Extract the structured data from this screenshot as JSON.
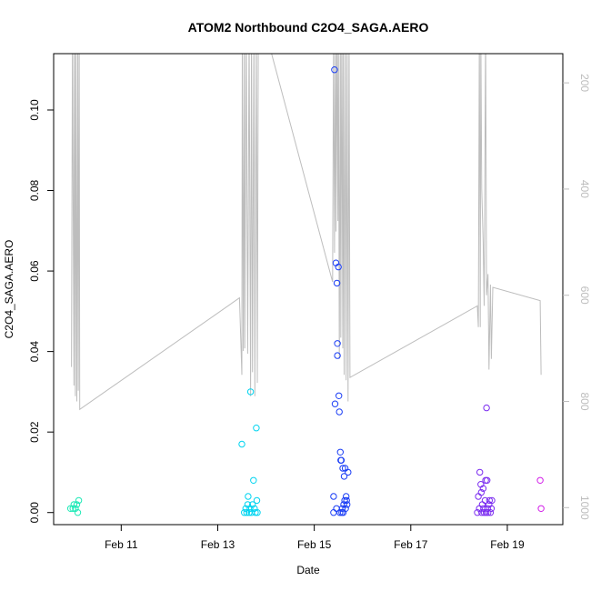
{
  "chart_data": {
    "type": "scatter",
    "title": "ATOM2 Northbound C2O4_SAGA.AERO",
    "xlabel": "Date",
    "ylabel": "C2O4_SAGA.AERO",
    "x_ticks": [
      "Feb 11",
      "Feb 13",
      "Feb 15",
      "Feb 17",
      "Feb 19"
    ],
    "x_tick_days": [
      11,
      13,
      15,
      17,
      19
    ],
    "xlim_days": [
      9.6,
      20.15
    ],
    "y_ticks": [
      "0.00",
      "0.02",
      "0.04",
      "0.06",
      "0.08",
      "0.10"
    ],
    "y_tick_values": [
      0,
      0.02,
      0.04,
      0.06,
      0.08,
      0.1
    ],
    "ylim": [
      -0.003,
      0.114
    ],
    "y2_ticks": [
      "200",
      "400",
      "600",
      "800",
      "1000"
    ],
    "y2_tick_values": [
      200,
      400,
      600,
      800,
      1000
    ],
    "y2lim": [
      1032,
      145
    ],
    "y2_color": "#bdbdbd",
    "grid": false,
    "legend": "none",
    "points": [
      {
        "x": 9.95,
        "y": 0.001,
        "color": "#1de9b6"
      },
      {
        "x": 10.0,
        "y": 0.001,
        "color": "#1de9b6"
      },
      {
        "x": 10.02,
        "y": 0.002,
        "color": "#1de9b6"
      },
      {
        "x": 10.05,
        "y": 0.001,
        "color": "#1de9b6"
      },
      {
        "x": 10.08,
        "y": 0.002,
        "color": "#1de9b6"
      },
      {
        "x": 10.1,
        "y": 0.0,
        "color": "#1de9b6"
      },
      {
        "x": 10.12,
        "y": 0.003,
        "color": "#1de9b6"
      },
      {
        "x": 13.5,
        "y": 0.017,
        "color": "#00d4f0"
      },
      {
        "x": 13.55,
        "y": 0.0,
        "color": "#00d4f0"
      },
      {
        "x": 13.58,
        "y": 0.001,
        "color": "#00d4f0"
      },
      {
        "x": 13.6,
        "y": 0.0,
        "color": "#00d4f0"
      },
      {
        "x": 13.62,
        "y": 0.002,
        "color": "#00d4f0"
      },
      {
        "x": 13.63,
        "y": 0.004,
        "color": "#00d4f0"
      },
      {
        "x": 13.65,
        "y": 0.0,
        "color": "#00d4f0"
      },
      {
        "x": 13.67,
        "y": 0.001,
        "color": "#00d4f0"
      },
      {
        "x": 13.68,
        "y": 0.03,
        "color": "#00d4f0"
      },
      {
        "x": 13.7,
        "y": 0.0,
        "color": "#00d4f0"
      },
      {
        "x": 13.72,
        "y": 0.002,
        "color": "#00d4f0"
      },
      {
        "x": 13.74,
        "y": 0.008,
        "color": "#00d4f0"
      },
      {
        "x": 13.76,
        "y": 0.001,
        "color": "#00d4f0"
      },
      {
        "x": 13.78,
        "y": 0.0,
        "color": "#00d4f0"
      },
      {
        "x": 13.8,
        "y": 0.021,
        "color": "#00d4f0"
      },
      {
        "x": 13.81,
        "y": 0.003,
        "color": "#00d4f0"
      },
      {
        "x": 13.82,
        "y": 0.0,
        "color": "#00d4f0"
      },
      {
        "x": 15.4,
        "y": 0.0,
        "color": "#1a3df5"
      },
      {
        "x": 15.4,
        "y": 0.004,
        "color": "#1a3df5"
      },
      {
        "x": 15.42,
        "y": 0.11,
        "color": "#1a3df5"
      },
      {
        "x": 15.43,
        "y": 0.027,
        "color": "#1a3df5"
      },
      {
        "x": 15.45,
        "y": 0.062,
        "color": "#1a3df5"
      },
      {
        "x": 15.46,
        "y": 0.001,
        "color": "#1a3df5"
      },
      {
        "x": 15.47,
        "y": 0.057,
        "color": "#1a3df5"
      },
      {
        "x": 15.48,
        "y": 0.042,
        "color": "#1a3df5"
      },
      {
        "x": 15.48,
        "y": 0.039,
        "color": "#1a3df5"
      },
      {
        "x": 15.5,
        "y": 0.061,
        "color": "#1a3df5"
      },
      {
        "x": 15.51,
        "y": 0.029,
        "color": "#1a3df5"
      },
      {
        "x": 15.52,
        "y": 0.025,
        "color": "#1a3df5"
      },
      {
        "x": 15.53,
        "y": 0.0,
        "color": "#1a3df5"
      },
      {
        "x": 15.54,
        "y": 0.015,
        "color": "#1a3df5"
      },
      {
        "x": 15.55,
        "y": 0.013,
        "color": "#1a3df5"
      },
      {
        "x": 15.56,
        "y": 0.013,
        "color": "#1a3df5"
      },
      {
        "x": 15.57,
        "y": 0.0,
        "color": "#1a3df5"
      },
      {
        "x": 15.58,
        "y": 0.001,
        "color": "#1a3df5"
      },
      {
        "x": 15.59,
        "y": 0.011,
        "color": "#1a3df5"
      },
      {
        "x": 15.6,
        "y": 0.0,
        "color": "#1a3df5"
      },
      {
        "x": 15.61,
        "y": 0.002,
        "color": "#1a3df5"
      },
      {
        "x": 15.62,
        "y": 0.009,
        "color": "#1a3df5"
      },
      {
        "x": 15.63,
        "y": 0.003,
        "color": "#1a3df5"
      },
      {
        "x": 15.64,
        "y": 0.011,
        "color": "#1a3df5"
      },
      {
        "x": 15.65,
        "y": 0.001,
        "color": "#1a3df5"
      },
      {
        "x": 15.66,
        "y": 0.004,
        "color": "#1a3df5"
      },
      {
        "x": 15.67,
        "y": 0.003,
        "color": "#1a3df5"
      },
      {
        "x": 15.68,
        "y": 0.002,
        "color": "#1a3df5"
      },
      {
        "x": 15.7,
        "y": 0.01,
        "color": "#1a3df5"
      },
      {
        "x": 18.38,
        "y": 0.0,
        "color": "#7b2cf0"
      },
      {
        "x": 18.4,
        "y": 0.004,
        "color": "#7b2cf0"
      },
      {
        "x": 18.42,
        "y": 0.001,
        "color": "#7b2cf0"
      },
      {
        "x": 18.43,
        "y": 0.01,
        "color": "#7b2cf0"
      },
      {
        "x": 18.45,
        "y": 0.007,
        "color": "#7b2cf0"
      },
      {
        "x": 18.46,
        "y": 0.005,
        "color": "#7b2cf0"
      },
      {
        "x": 18.47,
        "y": 0.0,
        "color": "#7b2cf0"
      },
      {
        "x": 18.48,
        "y": 0.002,
        "color": "#7b2cf0"
      },
      {
        "x": 18.5,
        "y": 0.006,
        "color": "#7b2cf0"
      },
      {
        "x": 18.51,
        "y": 0.001,
        "color": "#7b2cf0"
      },
      {
        "x": 18.52,
        "y": 0.0,
        "color": "#7b2cf0"
      },
      {
        "x": 18.54,
        "y": 0.003,
        "color": "#7b2cf0"
      },
      {
        "x": 18.55,
        "y": 0.008,
        "color": "#7b2cf0"
      },
      {
        "x": 18.56,
        "y": 0.0,
        "color": "#7b2cf0"
      },
      {
        "x": 18.57,
        "y": 0.026,
        "color": "#7b2cf0"
      },
      {
        "x": 18.58,
        "y": 0.008,
        "color": "#7b2cf0"
      },
      {
        "x": 18.59,
        "y": 0.001,
        "color": "#7b2cf0"
      },
      {
        "x": 18.6,
        "y": 0.0,
        "color": "#7b2cf0"
      },
      {
        "x": 18.62,
        "y": 0.002,
        "color": "#7b2cf0"
      },
      {
        "x": 18.63,
        "y": 0.003,
        "color": "#7b2cf0"
      },
      {
        "x": 18.65,
        "y": 0.0,
        "color": "#7b2cf0"
      },
      {
        "x": 18.67,
        "y": 0.001,
        "color": "#7b2cf0"
      },
      {
        "x": 18.68,
        "y": 0.003,
        "color": "#7b2cf0"
      },
      {
        "x": 19.68,
        "y": 0.008,
        "color": "#d21ee8"
      },
      {
        "x": 19.7,
        "y": 0.001,
        "color": "#d21ee8"
      }
    ],
    "pressure_line": {
      "color": "#bdbdbd",
      "x": [
        9.97,
        9.99,
        10.02,
        10.03,
        10.05,
        10.06,
        10.08,
        10.1,
        10.11,
        10.13,
        10.14,
        13.45,
        13.5,
        13.51,
        13.53,
        13.55,
        13.56,
        13.59,
        13.62,
        13.65,
        13.68,
        13.7,
        13.72,
        13.75,
        13.77,
        13.8,
        13.82,
        13.84,
        14.1,
        15.38,
        15.4,
        15.42,
        15.44,
        15.45,
        15.47,
        15.49,
        15.5,
        15.52,
        15.54,
        15.55,
        15.57,
        15.59,
        15.6,
        15.62,
        15.64,
        15.66,
        15.68,
        15.7,
        15.72,
        15.74,
        18.38,
        18.4,
        18.42,
        18.44,
        18.45,
        18.47,
        18.5,
        18.52,
        18.55,
        18.57,
        18.6,
        18.62,
        18.65,
        18.67,
        18.7,
        19.68,
        19.7
      ],
      "y": [
        735,
        100,
        770,
        100,
        790,
        100,
        800,
        100,
        780,
        100,
        815,
        605,
        750,
        100,
        705,
        100,
        700,
        100,
        710,
        100,
        790,
        100,
        745,
        100,
        790,
        100,
        765,
        100,
        140,
        575,
        100,
        520,
        100,
        480,
        100,
        460,
        100,
        720,
        100,
        680,
        100,
        700,
        100,
        750,
        100,
        760,
        100,
        800,
        100,
        755,
        620,
        660,
        100,
        660,
        100,
        400,
        500,
        620,
        100,
        600,
        560,
        740,
        580,
        720,
        585,
        610,
        750
      ]
    }
  }
}
